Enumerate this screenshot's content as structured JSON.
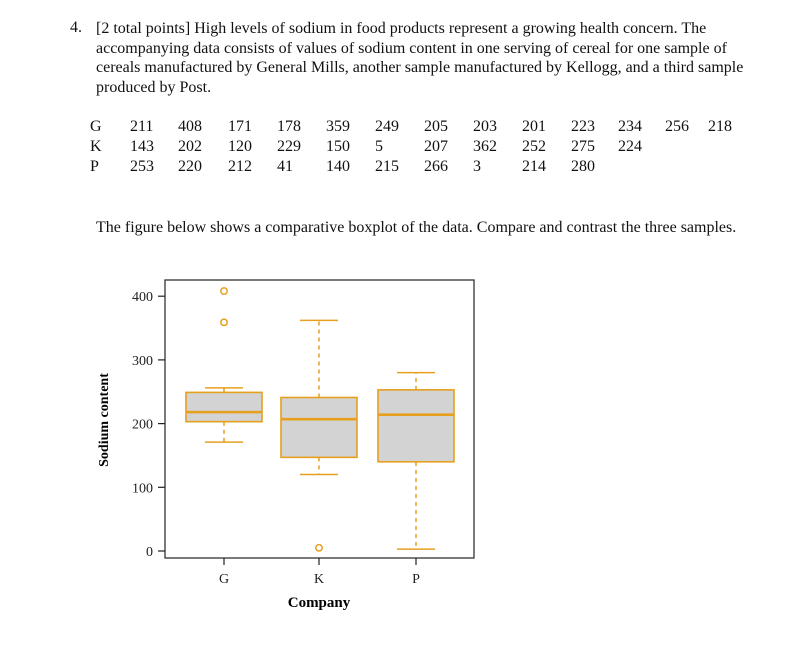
{
  "question": {
    "number": "4.",
    "intro": "[2 total points] High levels of sodium in food products represent a growing health concern. The accompanying data consists of values of sodium content in one serving of cereal for one sample of cereals manufactured by General Mills, another sample manufactured by Kellogg, and a third sample produced by Post.",
    "figure_text": "The figure below shows a comparative boxplot of the data. Compare and contrast the three samples."
  },
  "data_table": {
    "rows": [
      {
        "label": "G",
        "values": [
          "211",
          "408",
          "171",
          "178",
          "359",
          "249",
          "205",
          "203",
          "201",
          "223",
          "234",
          "256",
          "218"
        ]
      },
      {
        "label": "K",
        "values": [
          "143",
          "202",
          "120",
          "229",
          "150",
          "5",
          "207",
          "362",
          "252",
          "275",
          "224"
        ]
      },
      {
        "label": "P",
        "values": [
          "253",
          "220",
          "212",
          "41",
          "140",
          "215",
          "266",
          "3",
          "214",
          "280"
        ]
      }
    ]
  },
  "chart_data": {
    "type": "boxplot",
    "title": "",
    "xlabel": "Company",
    "ylabel": "Sodium content",
    "categories": [
      "G",
      "K",
      "P"
    ],
    "yticks": [
      "0",
      "100",
      "200",
      "300",
      "400"
    ],
    "ylim": [
      -10,
      430
    ],
    "grid": false,
    "colors": {
      "stroke": "#E6A01E",
      "fill": "#D3D3D3",
      "frame": "#333333"
    },
    "series": [
      {
        "name": "G",
        "whisker_low": 171,
        "q1": 203,
        "median": 218,
        "q3": 249,
        "whisker_high": 256,
        "outliers": [
          359,
          408
        ]
      },
      {
        "name": "K",
        "whisker_low": 120,
        "q1": 147,
        "median": 207,
        "q3": 241,
        "whisker_high": 362,
        "outliers": [
          5
        ]
      },
      {
        "name": "P",
        "whisker_low": 3,
        "q1": 140,
        "median": 214,
        "q3": 253,
        "whisker_high": 280,
        "outliers": []
      }
    ]
  }
}
